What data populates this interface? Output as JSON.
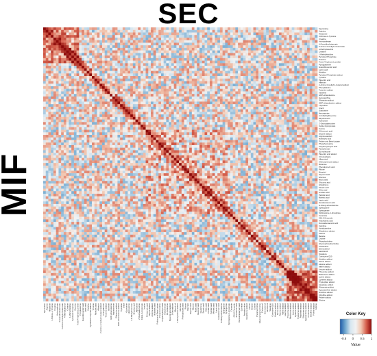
{
  "figure": {
    "top_title": "SEC",
    "left_title": "MIF"
  },
  "chart_data": {
    "type": "heatmap",
    "title": "",
    "xlabel": "",
    "ylabel": "",
    "labels": [
      "Spermidine",
      "Arginine",
      "Histamine",
      "3-Nitroso-L-Tyrosine",
      "Creatine",
      "Aminovalerate",
      "4-Guanidinobutanoate",
      "5-Amino-3-methyl-2-butenoate",
      "4-Methylcatechol",
      "Creatine",
      "1-Methylhistidine",
      "Pyridoxal Phosphate",
      "Guanine",
      "Trans-4-hydroxy-L-proline",
      "Pyroglutamine",
      "Guanidinoacetic acid",
      "Lactic acid",
      "Histidine",
      "Pyridoxal Phosphate adduct",
      "Tyrosine",
      "Pipecolic acid",
      "Allantoin",
      "2-Amino-3-methyl-1-butanol adduct",
      "Phenylalanine",
      "Tyramine adduct",
      "Xanthine",
      "GDP-ethanolamine",
      "Hypoxanthine",
      "Glutamine adduct",
      "GDP-ethanolamine adduct",
      "Thymidine",
      "Uracil",
      "Guanosine",
      "Hexosamine",
      "2-O-Methylthreonine",
      "Dihydrouracil",
      "Adenosine",
      "2'-Deoxyadenosine",
      "Indole-3-propionate",
      "Inosine",
      "5-Hexenoic acid",
      "Glycine adduct",
      "Arginine adduct",
      "Isobutyric acid",
      "Proline and Beta-Lactate",
      "Phosphocreatine",
      "3-Hydroxybutyric acid",
      "Pantothenate",
      "DL-Isoleucine",
      "Pipecolic acid adduct",
      "3-Ketoadipate",
      "Allopurinol",
      "3-Deoxyhexose adduct",
      "Mannose",
      "Phenylpyruvic acid",
      "Ribose",
      "Mannitol",
      "Glyceric acid",
      "Glucose",
      "Mucic acid",
      "Gluconic acid",
      "Glutathione",
      "Stearic acid",
      "Oleic acid",
      "Linoleic acid",
      "Palmitic acid",
      "Myristic acid",
      "Lauric acid",
      "Hexadecanoic acid",
      "N-Oleoyl-ethanolamine",
      "Sphingosine",
      "Sphinganine",
      "Sphingosine-1-phosphate",
      "Ceramide",
      "C16:0 Ceramide",
      "Arachidonic acid",
      "Docosahexaenoic acid",
      "Carnitine",
      "Acetylcarnitine",
      "Glutathione adduct",
      "Taurine",
      "Betaine",
      "Choline",
      "Phosphocholine",
      "Glycerophosphocholine",
      "Cholesterol",
      "Desmosterol",
      "Lanosterol",
      "Squalene",
      "Coenzyme Q10",
      "Histidine adduct",
      "Serine adduct",
      "Alanine adduct",
      "Valine adduct",
      "Leucine adduct",
      "Threonine adduct",
      "Methionine adduct",
      "Lysine adduct",
      "Cysteine adduct",
      "Tryptophan adduct",
      "Aspartate adduct",
      "Glutamate adduct",
      "Hypoxanthine adduct",
      "Ornithine adduct",
      "Citrulline adduct",
      "Proline adduct",
      "Glycine"
    ],
    "color_key": {
      "title": "Color Key",
      "ticks": [
        -0.5,
        0,
        0.5,
        1
      ],
      "tick_labels": [
        "-0.5",
        "0",
        "0.5",
        "1"
      ],
      "value_label": "Value",
      "colors": [
        "#1e5aa8",
        "#6fa7cf",
        "#d7e6f0",
        "#f2f2f2",
        "#f2c8b2",
        "#d6604d",
        "#8b0a0a"
      ]
    },
    "values_description": "Symmetric correlation matrix, 1.0 on the diagonal"
  }
}
